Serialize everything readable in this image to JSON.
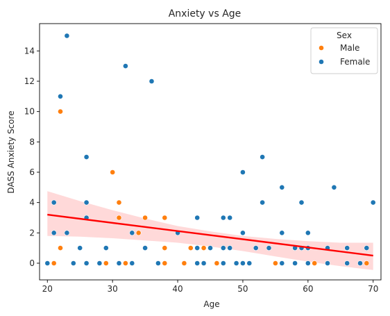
{
  "chart_data": {
    "type": "scatter",
    "title": "Anxiety vs Age",
    "xlabel": "Age",
    "ylabel": "DASS Anxiety Score",
    "xlim": [
      18.8,
      71.2
    ],
    "ylim": [
      -1.1,
      15.8
    ],
    "xticks": [
      20,
      30,
      40,
      50,
      60,
      70
    ],
    "yticks": [
      0,
      2,
      4,
      6,
      8,
      10,
      12,
      14
    ],
    "grid": false,
    "legend": {
      "title": "Sex",
      "placement": "top-right",
      "entries": [
        {
          "name": "Male",
          "color": "#ff7f0e"
        },
        {
          "name": "Female",
          "color": "#1f77b4"
        }
      ]
    },
    "series": [
      {
        "name": "Male",
        "color": "#ff7f0e",
        "points": [
          {
            "x": 21,
            "y": 0
          },
          {
            "x": 22,
            "y": 1
          },
          {
            "x": 22,
            "y": 10
          },
          {
            "x": 29,
            "y": 0
          },
          {
            "x": 30,
            "y": 6
          },
          {
            "x": 31,
            "y": 4
          },
          {
            "x": 31,
            "y": 3
          },
          {
            "x": 32,
            "y": 0
          },
          {
            "x": 34,
            "y": 2
          },
          {
            "x": 35,
            "y": 3
          },
          {
            "x": 38,
            "y": 3
          },
          {
            "x": 38,
            "y": 1
          },
          {
            "x": 38,
            "y": 0
          },
          {
            "x": 41,
            "y": 0
          },
          {
            "x": 42,
            "y": 1
          },
          {
            "x": 44,
            "y": 1
          },
          {
            "x": 46,
            "y": 0
          },
          {
            "x": 55,
            "y": 0
          },
          {
            "x": 61,
            "y": 0
          },
          {
            "x": 69,
            "y": 0
          }
        ]
      },
      {
        "name": "Female",
        "color": "#1f77b4",
        "points": [
          {
            "x": 20,
            "y": 0
          },
          {
            "x": 21,
            "y": 4
          },
          {
            "x": 21,
            "y": 2
          },
          {
            "x": 22,
            "y": 11
          },
          {
            "x": 23,
            "y": 15
          },
          {
            "x": 23,
            "y": 2
          },
          {
            "x": 24,
            "y": 0
          },
          {
            "x": 25,
            "y": 1
          },
          {
            "x": 26,
            "y": 7
          },
          {
            "x": 26,
            "y": 4
          },
          {
            "x": 26,
            "y": 3
          },
          {
            "x": 26,
            "y": 0
          },
          {
            "x": 28,
            "y": 0
          },
          {
            "x": 29,
            "y": 1
          },
          {
            "x": 31,
            "y": 0
          },
          {
            "x": 32,
            "y": 13
          },
          {
            "x": 33,
            "y": 2
          },
          {
            "x": 33,
            "y": 0
          },
          {
            "x": 35,
            "y": 1
          },
          {
            "x": 36,
            "y": 12
          },
          {
            "x": 37,
            "y": 0
          },
          {
            "x": 40,
            "y": 2
          },
          {
            "x": 43,
            "y": 3
          },
          {
            "x": 43,
            "y": 1
          },
          {
            "x": 43,
            "y": 0
          },
          {
            "x": 44,
            "y": 0
          },
          {
            "x": 45,
            "y": 1
          },
          {
            "x": 47,
            "y": 3
          },
          {
            "x": 47,
            "y": 1
          },
          {
            "x": 47,
            "y": 0
          },
          {
            "x": 48,
            "y": 3
          },
          {
            "x": 48,
            "y": 1
          },
          {
            "x": 49,
            "y": 0
          },
          {
            "x": 50,
            "y": 6
          },
          {
            "x": 50,
            "y": 2
          },
          {
            "x": 50,
            "y": 0
          },
          {
            "x": 51,
            "y": 0
          },
          {
            "x": 52,
            "y": 1
          },
          {
            "x": 53,
            "y": 7
          },
          {
            "x": 53,
            "y": 4
          },
          {
            "x": 54,
            "y": 1
          },
          {
            "x": 56,
            "y": 5
          },
          {
            "x": 56,
            "y": 2
          },
          {
            "x": 56,
            "y": 0
          },
          {
            "x": 58,
            "y": 1
          },
          {
            "x": 58,
            "y": 0
          },
          {
            "x": 59,
            "y": 4
          },
          {
            "x": 59,
            "y": 1
          },
          {
            "x": 60,
            "y": 2
          },
          {
            "x": 60,
            "y": 1
          },
          {
            "x": 60,
            "y": 0
          },
          {
            "x": 63,
            "y": 1
          },
          {
            "x": 63,
            "y": 0
          },
          {
            "x": 64,
            "y": 5
          },
          {
            "x": 66,
            "y": 1
          },
          {
            "x": 66,
            "y": 0
          },
          {
            "x": 68,
            "y": 0
          },
          {
            "x": 69,
            "y": 1
          },
          {
            "x": 70,
            "y": 4
          }
        ]
      }
    ],
    "regression": {
      "color": "#ff0000",
      "line": [
        {
          "x": 20,
          "y": 3.2
        },
        {
          "x": 70,
          "y": 0.5
        }
      ],
      "ci_upper": [
        {
          "x": 20,
          "y": 4.75
        },
        {
          "x": 25,
          "y": 4.1
        },
        {
          "x": 30,
          "y": 3.5
        },
        {
          "x": 35,
          "y": 2.95
        },
        {
          "x": 40,
          "y": 2.45
        },
        {
          "x": 45,
          "y": 2.1
        },
        {
          "x": 50,
          "y": 1.8
        },
        {
          "x": 55,
          "y": 1.6
        },
        {
          "x": 60,
          "y": 1.45
        },
        {
          "x": 65,
          "y": 1.35
        },
        {
          "x": 70,
          "y": 1.35
        }
      ],
      "ci_lower": [
        {
          "x": 20,
          "y": 1.8
        },
        {
          "x": 25,
          "y": 1.75
        },
        {
          "x": 30,
          "y": 1.65
        },
        {
          "x": 35,
          "y": 1.5
        },
        {
          "x": 40,
          "y": 1.35
        },
        {
          "x": 45,
          "y": 1.1
        },
        {
          "x": 50,
          "y": 0.8
        },
        {
          "x": 55,
          "y": 0.45
        },
        {
          "x": 60,
          "y": 0.1
        },
        {
          "x": 65,
          "y": -0.2
        },
        {
          "x": 70,
          "y": -0.45
        }
      ]
    }
  }
}
